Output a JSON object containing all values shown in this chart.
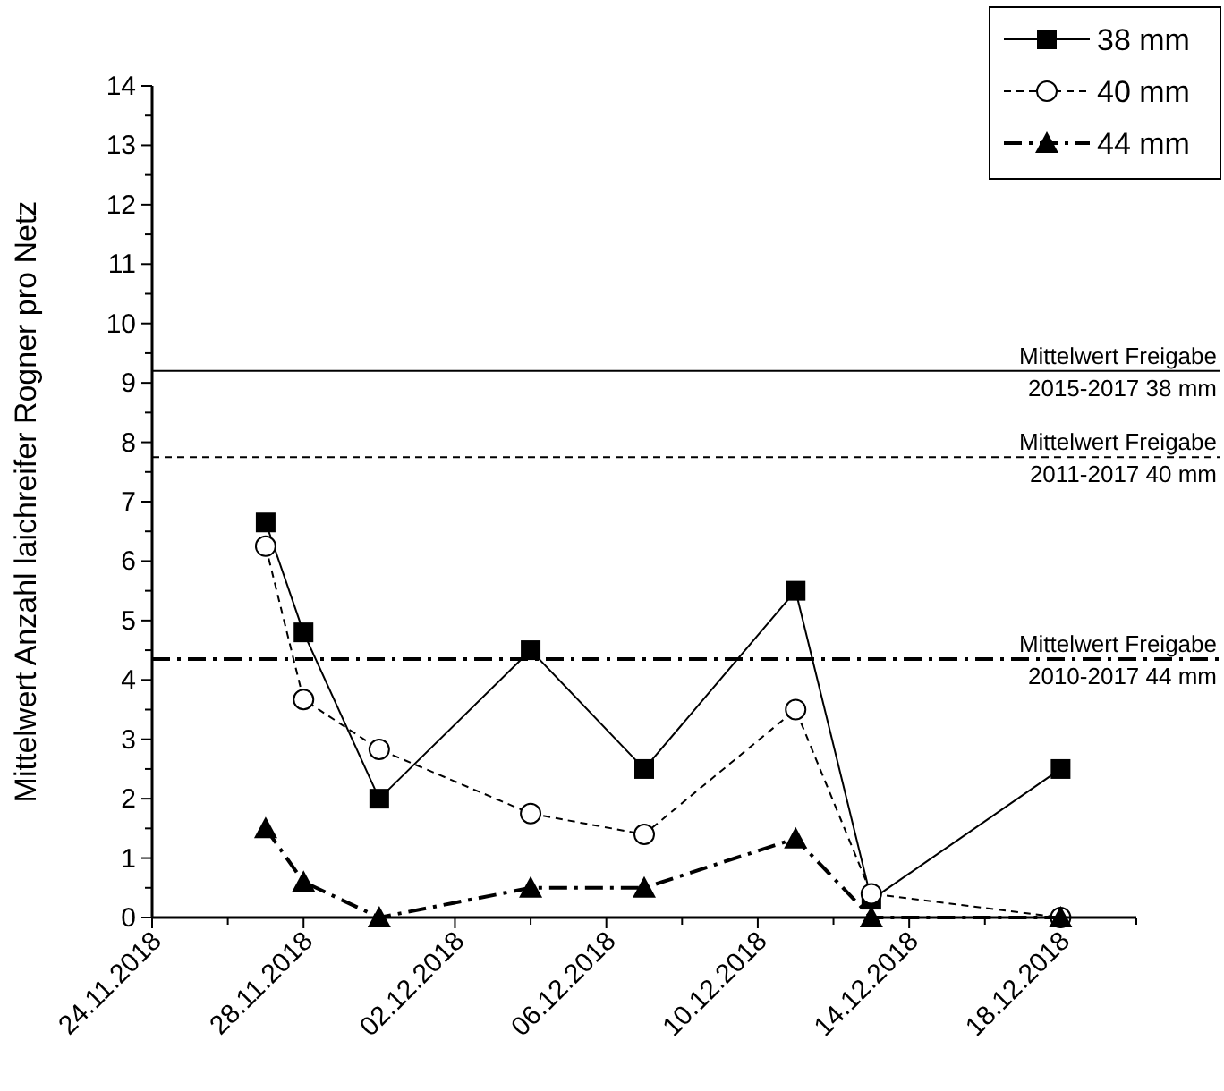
{
  "chart_data": {
    "type": "line",
    "ylabel": "Mittelwert Anzahl laichreifer Rogner pro Netz",
    "x": [
      "2018-11-27",
      "2018-11-28",
      "2018-11-30",
      "2018-12-04",
      "2018-12-07",
      "2018-12-11",
      "2018-12-13",
      "2018-12-18"
    ],
    "series": [
      {
        "name": "38 mm",
        "color": "#000000",
        "marker": "square",
        "line_style": "solid",
        "values": [
          6.65,
          4.8,
          2.0,
          4.5,
          2.5,
          5.5,
          0.3,
          2.5
        ]
      },
      {
        "name": "40 mm",
        "color": "#000000",
        "marker": "circle",
        "line_style": "dashed",
        "values": [
          6.25,
          3.67,
          2.83,
          1.75,
          1.4,
          3.5,
          0.4,
          0
        ]
      },
      {
        "name": "44 mm",
        "color": "#000000",
        "marker": "triangle",
        "line_style": "dashdot",
        "values": [
          1.5,
          0.6,
          0,
          0.5,
          0.5,
          1.33,
          0,
          0
        ]
      }
    ],
    "xlim": [
      "2018-11-24",
      "2018-12-20"
    ],
    "xticks": [
      {
        "value": "2018-11-24",
        "label": "24.11.2018"
      },
      {
        "value": "2018-11-26",
        "label": null
      },
      {
        "value": "2018-11-28",
        "label": "28.11.2018"
      },
      {
        "value": "2018-11-30",
        "label": null
      },
      {
        "value": "2018-12-02",
        "label": "02.12.2018"
      },
      {
        "value": "2018-12-04",
        "label": null
      },
      {
        "value": "2018-12-06",
        "label": "06.12.2018"
      },
      {
        "value": "2018-12-08",
        "label": null
      },
      {
        "value": "2018-12-10",
        "label": "10.12.2018"
      },
      {
        "value": "2018-12-12",
        "label": null
      },
      {
        "value": "2018-12-14",
        "label": "14.12.2018"
      },
      {
        "value": "2018-12-16",
        "label": null
      },
      {
        "value": "2018-12-18",
        "label": "18.12.2018"
      },
      {
        "value": "2018-12-20",
        "label": null
      }
    ],
    "ylim": [
      0,
      14
    ],
    "yticks": [
      0,
      {
        "value": 0.5,
        "label": null
      },
      1,
      {
        "value": 1.5,
        "label": null
      },
      2,
      {
        "value": 2.5,
        "label": null
      },
      3,
      {
        "value": 3.5,
        "label": null
      },
      4,
      {
        "value": 4.5,
        "label": null
      },
      5,
      {
        "value": 5.5,
        "label": null
      },
      6,
      {
        "value": 6.5,
        "label": null
      },
      7,
      {
        "value": 7.5,
        "label": null
      },
      8,
      {
        "value": 8.5,
        "label": null
      },
      9,
      {
        "value": 9.5,
        "label": null
      },
      10,
      {
        "value": 10.5,
        "label": null
      },
      11,
      {
        "value": 11.5,
        "label": null
      },
      12,
      {
        "value": 12.5,
        "label": null
      },
      13,
      {
        "value": 13.5,
        "label": null
      },
      14
    ],
    "ref_lines": [
      {
        "axis": "y",
        "value": 9.2,
        "label": "Mittelwert Freigabe\n2015-2017 38 mm",
        "color": "#000000",
        "line_style": "solid"
      },
      {
        "axis": "y",
        "value": 7.75,
        "label": "Mittelwert Freigabe\n2011-2017 40 mm",
        "color": "#000000",
        "line_style": "dashed"
      },
      {
        "axis": "y",
        "value": 4.35,
        "label": "Mittelwert Freigabe\n2010-2017 44 mm",
        "color": "#000000",
        "line_style": "dashdot"
      }
    ],
    "grid": false,
    "legend": "top right"
  }
}
